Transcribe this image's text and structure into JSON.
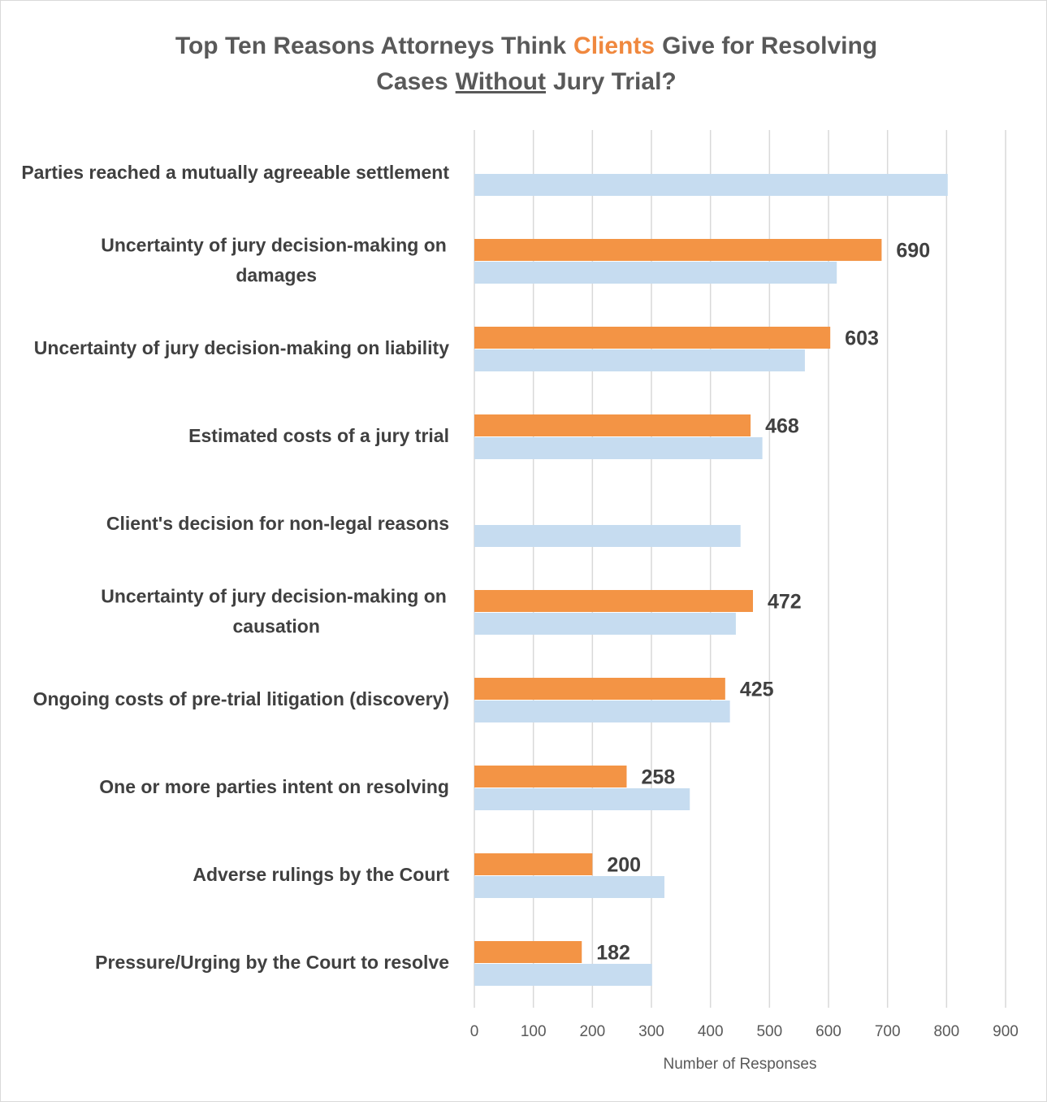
{
  "chart_data": {
    "type": "hbar",
    "title_parts": [
      "Top Ten Reasons Attorneys Think",
      "Clients",
      "Give for Resolving",
      "Cases",
      "Without",
      "Jury Trial?"
    ],
    "title_highlight_color": "#f0883e",
    "x_label": "Number of Responses",
    "categories": [
      "Parties reached a mutually agreeable settlement",
      "Uncertainty of jury decision-making on damages",
      "Uncertainty of jury decision-making on liability",
      "Estimated costs of a jury trial",
      "Client's decision for non-legal reasons",
      "Uncertainty of jury decision-making on causation",
      "Ongoing costs of pre-trial litigation (discovery)",
      "One or more parties intent on resolving",
      "Adverse rulings by the Court",
      "Pressure/Urging by the Court to resolve"
    ],
    "series": [
      {
        "color": "#f39445",
        "values": [
          null,
          690,
          603,
          468,
          null,
          472,
          425,
          258,
          200,
          182
        ],
        "show_labels": true
      },
      {
        "color": "#c6dcf0",
        "values": [
          802,
          614,
          560,
          488,
          451,
          443,
          433,
          365,
          322,
          301
        ],
        "show_labels": false
      }
    ],
    "xlim": [
      0,
      900
    ],
    "xticks": [
      0,
      100,
      200,
      300,
      400,
      500,
      600,
      700,
      800,
      900
    ],
    "grid": true
  }
}
